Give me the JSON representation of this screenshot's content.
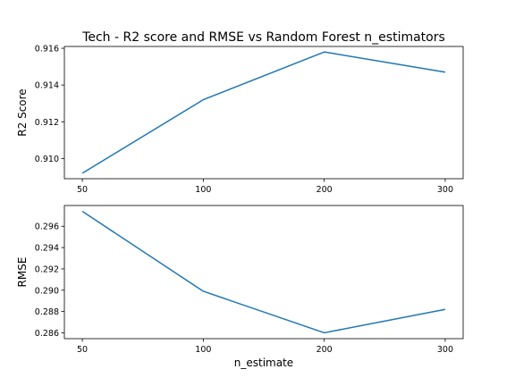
{
  "title": "Tech - R2 score and RMSE vs Random Forest n_estimators",
  "colors": {
    "series": "#1f77b4"
  },
  "chart_data": [
    {
      "type": "line",
      "categories": [
        "50",
        "100",
        "200",
        "300"
      ],
      "values": [
        0.9092,
        0.9132,
        0.9158,
        0.9147
      ],
      "xlabel": "",
      "ylabel": "R2 Score",
      "ylim": [
        0.9089,
        0.9161
      ],
      "yticks": [
        {
          "value": 0.91,
          "label": "0.910"
        },
        {
          "value": 0.912,
          "label": "0.912"
        },
        {
          "value": 0.914,
          "label": "0.914"
        },
        {
          "value": 0.916,
          "label": "0.916"
        }
      ],
      "grid": false
    },
    {
      "type": "line",
      "categories": [
        "50",
        "100",
        "200",
        "300"
      ],
      "values": [
        0.2974,
        0.2899,
        0.286,
        0.2882
      ],
      "xlabel": "n_estimate",
      "ylabel": "RMSE",
      "ylim": [
        0.28545,
        0.29795
      ],
      "yticks": [
        {
          "value": 0.286,
          "label": "0.286"
        },
        {
          "value": 0.288,
          "label": "0.288"
        },
        {
          "value": 0.29,
          "label": "0.290"
        },
        {
          "value": 0.292,
          "label": "0.292"
        },
        {
          "value": 0.294,
          "label": "0.294"
        },
        {
          "value": 0.296,
          "label": "0.296"
        }
      ],
      "grid": false
    }
  ]
}
